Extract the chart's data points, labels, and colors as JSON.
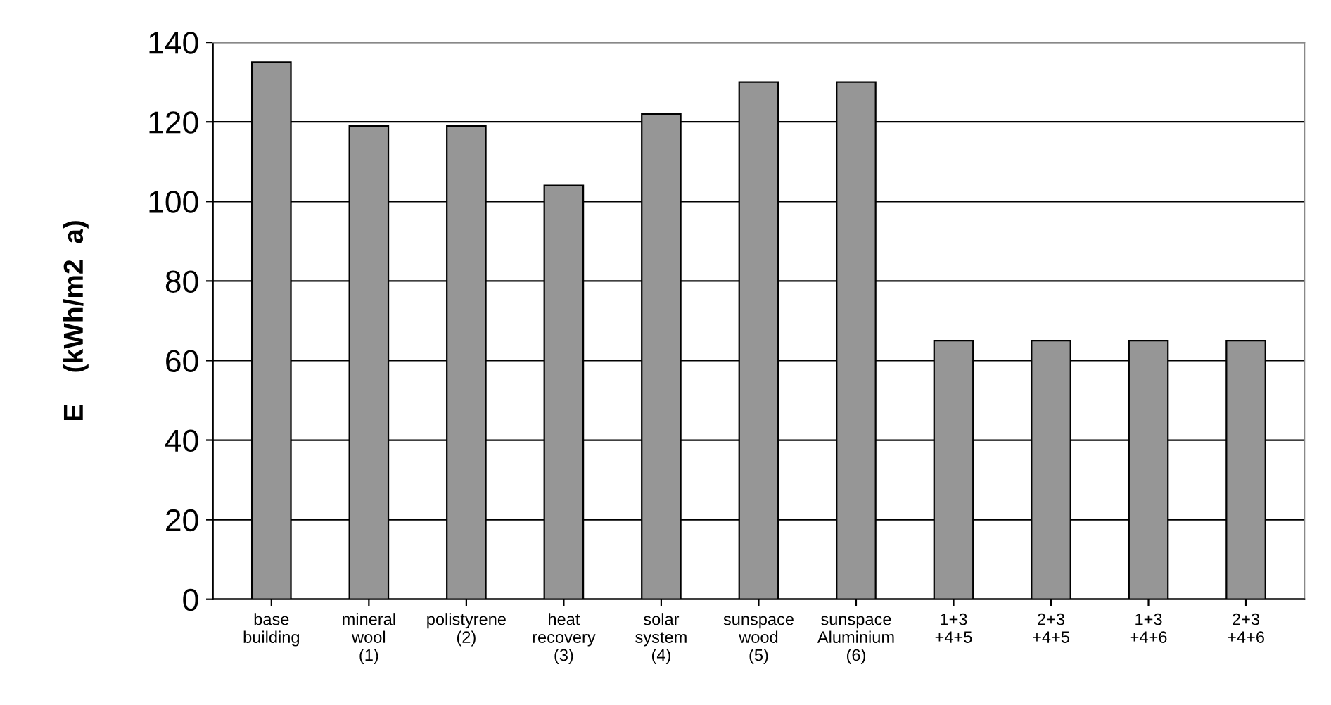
{
  "chart_data": {
    "type": "bar",
    "ylabel": "E    (kWh/m2  a)",
    "categories": [
      "base\nbuilding",
      "mineral\nwool\n(1)",
      "polistyrene\n(2)",
      "heat\nrecovery\n(3)",
      "solar\nsystem\n(4)",
      "sunspace\nwood\n(5)",
      "sunspace\nAluminium\n(6)",
      "1+3\n+4+5",
      "2+3\n+4+5",
      "1+3\n+4+6",
      "2+3\n+4+6"
    ],
    "values": [
      135,
      119,
      119,
      104,
      122,
      130,
      130,
      65,
      65,
      65,
      65
    ],
    "color": "#969696",
    "ylim": [
      0,
      140
    ],
    "yticks": [
      0,
      20,
      40,
      60,
      80,
      100,
      120,
      140
    ],
    "grid": "y"
  }
}
